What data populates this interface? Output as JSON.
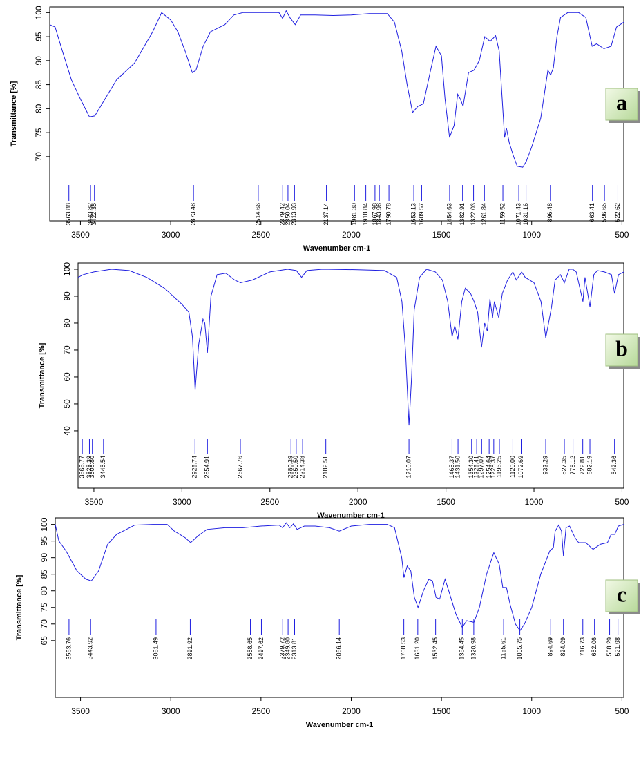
{
  "chart_data": [
    {
      "type": "line",
      "label": "a",
      "color": "#1f1fe0",
      "xlabel": "Wavenumber cm-1",
      "ylabel": "Transmittance [%]",
      "xlim": [
        3670,
        490
      ],
      "ylim": [
        56.6,
        101.2
      ],
      "xticks": [
        3500,
        3000,
        2500,
        2000,
        1500,
        1000,
        500
      ],
      "yticks": [
        70,
        75,
        80,
        85,
        90,
        95,
        100
      ],
      "x": [
        3670,
        3640,
        3600,
        3550,
        3500,
        3450,
        3420,
        3380,
        3300,
        3200,
        3100,
        3050,
        3000,
        2960,
        2920,
        2880,
        2860,
        2820,
        2780,
        2700,
        2650,
        2600,
        2400,
        2380,
        2360,
        2340,
        2310,
        2280,
        2200,
        2100,
        2000,
        1900,
        1800,
        1760,
        1720,
        1690,
        1660,
        1630,
        1600,
        1560,
        1530,
        1500,
        1480,
        1455,
        1430,
        1410,
        1395,
        1380,
        1350,
        1320,
        1290,
        1260,
        1230,
        1200,
        1180,
        1160,
        1150,
        1140,
        1125,
        1100,
        1080,
        1050,
        1030,
        1000,
        950,
        910,
        895,
        880,
        860,
        840,
        800,
        740,
        700,
        665,
        640,
        600,
        560,
        530,
        510,
        490
      ],
      "values": [
        97.5,
        97,
        92,
        86,
        82,
        78.3,
        78.5,
        81,
        86,
        89.5,
        96,
        100,
        98.5,
        96,
        92,
        87.5,
        88,
        93,
        96,
        97.5,
        99.5,
        100,
        100,
        98.8,
        100.4,
        99,
        97.5,
        99.5,
        99.5,
        99.4,
        99.5,
        99.8,
        99.8,
        98,
        92,
        85,
        79.2,
        80.5,
        81,
        88,
        93,
        91,
        82,
        74,
        76.5,
        83,
        82,
        80.5,
        87.5,
        88,
        90,
        95,
        94,
        95.2,
        92,
        80,
        74,
        76,
        73,
        70,
        68,
        67.8,
        69,
        72,
        78,
        88,
        87,
        88.5,
        95,
        99,
        100,
        100,
        99,
        93,
        93.5,
        92.5,
        93,
        97,
        97.5,
        98
      ],
      "peaks": [
        3563.88,
        3443.82,
        3422.35,
        2873.48,
        2514.66,
        2379.42,
        2350.04,
        2313.93,
        2137.14,
        {
          "value": 1981.3,
          "label": "1981.30"
        },
        1918.84,
        1867.98,
        1843.98,
        1790.78,
        1653.13,
        1609.57,
        1454.63,
        1382.91,
        1322.03,
        1261.84,
        1159.52,
        1071.43,
        1031.16,
        896.48,
        663.41,
        596.65,
        522.62
      ]
    },
    {
      "type": "line",
      "label": "b",
      "color": "#1f1fe0",
      "xlabel": "Wavenumber cm-1",
      "ylabel": "Transmittance [%]",
      "xlim": [
        3590,
        490
      ],
      "ylim": [
        18.7,
        102.3
      ],
      "xticks": [
        3500,
        3000,
        2500,
        2000,
        1500,
        1000,
        500
      ],
      "yticks": [
        40,
        50,
        60,
        70,
        80,
        90,
        100
      ],
      "x": [
        3590,
        3560,
        3500,
        3400,
        3300,
        3200,
        3100,
        3000,
        2960,
        2940,
        2925,
        2905,
        2880,
        2870,
        2855,
        2835,
        2800,
        2750,
        2700,
        2667,
        2600,
        2500,
        2400,
        2350,
        2320,
        2290,
        2200,
        2000,
        1850,
        1780,
        1750,
        1730,
        1710,
        1695,
        1680,
        1650,
        1610,
        1560,
        1520,
        1490,
        1465,
        1450,
        1432,
        1410,
        1390,
        1360,
        1340,
        1320,
        1298,
        1280,
        1265,
        1250,
        1235,
        1225,
        1200,
        1180,
        1150,
        1120,
        1100,
        1070,
        1050,
        1000,
        960,
        933,
        900,
        880,
        850,
        827,
        800,
        780,
        760,
        722,
        710,
        682,
        660,
        640,
        600,
        560,
        542,
        520,
        490
      ],
      "values": [
        97,
        98,
        99,
        100,
        99.5,
        97,
        93,
        87,
        84,
        75,
        55,
        72,
        81.5,
        80,
        69,
        90,
        98,
        98.5,
        96,
        95,
        96,
        99,
        100,
        99.5,
        97,
        99.5,
        100,
        99.8,
        99.5,
        97,
        88,
        70,
        42,
        60,
        85,
        97,
        100,
        99,
        96,
        88,
        75,
        79,
        74,
        88,
        93,
        91,
        88,
        84,
        71,
        80,
        77,
        89,
        82,
        88,
        82,
        91,
        96,
        99,
        96,
        99,
        97,
        95,
        88,
        74.5,
        86,
        96,
        98,
        95,
        100,
        100,
        99,
        88,
        97,
        86,
        98,
        99.5,
        99,
        98,
        91,
        98,
        99
      ],
      "peaks": [
        3565.77,
        3525.39,
        {
          "value": 3508.8,
          "label": "3508.80"
        },
        3445.54,
        2925.74,
        2854.91,
        2667.76,
        2380.39,
        {
          "value": 2350.5,
          "label": "2350.50"
        },
        2314.38,
        2182.51,
        1710.07,
        1465.37,
        {
          "value": 1431.5,
          "label": "1431.50"
        },
        {
          "value": 1354.3,
          "label": "1354.30"
        },
        1325.41,
        1297.07,
        1254.64,
        1228.37,
        1196.25,
        {
          "value": 1120,
          "label": "1120.00"
        },
        1072.69,
        933.29,
        827.35,
        778.12,
        722.81,
        682.19,
        542.36
      ]
    },
    {
      "type": "line",
      "label": "c",
      "color": "#1f1fe0",
      "xlabel": "Wavenumber cm-1",
      "ylabel": "Transmittance [%]",
      "xlim": [
        3640,
        490
      ],
      "ylim": [
        47.9,
        102
      ],
      "xticks": [
        3500,
        3000,
        2500,
        2000,
        1500,
        1000,
        500
      ],
      "yticks": [
        65,
        70,
        75,
        80,
        85,
        90,
        95,
        100
      ],
      "x": [
        3640,
        3620,
        3580,
        3520,
        3470,
        3440,
        3400,
        3350,
        3300,
        3200,
        3100,
        3020,
        2980,
        2920,
        2890,
        2850,
        2800,
        2700,
        2600,
        2500,
        2400,
        2380,
        2360,
        2340,
        2320,
        2300,
        2260,
        2200,
        2120,
        2066,
        2000,
        1900,
        1800,
        1760,
        1720,
        1708,
        1690,
        1670,
        1650,
        1630,
        1600,
        1570,
        1550,
        1530,
        1510,
        1480,
        1460,
        1420,
        1385,
        1360,
        1320,
        1290,
        1250,
        1210,
        1180,
        1160,
        1140,
        1120,
        1090,
        1065,
        1040,
        1000,
        950,
        900,
        880,
        870,
        850,
        835,
        824,
        810,
        790,
        760,
        740,
        700,
        660,
        620,
        580,
        560,
        540,
        520,
        490
      ],
      "values": [
        100,
        95,
        92,
        86,
        83.5,
        83,
        86,
        94,
        97,
        99.8,
        100,
        100,
        98,
        96,
        94.5,
        96.5,
        98.5,
        99,
        99,
        99.5,
        99.8,
        99,
        100.5,
        99,
        100.2,
        98.5,
        99.5,
        99.5,
        99,
        98,
        99.5,
        100,
        100,
        99,
        90,
        84,
        87.5,
        86,
        78,
        75,
        80,
        83.5,
        83,
        78,
        77.5,
        83.5,
        80,
        73,
        69,
        71,
        70.5,
        75,
        85,
        91.5,
        88,
        81,
        81,
        76,
        70,
        68,
        70,
        75,
        85,
        92,
        93,
        98,
        99.8,
        98,
        90.5,
        99,
        99.5,
        96,
        94.5,
        94.5,
        92.5,
        94,
        94.5,
        97,
        97,
        99.5,
        100
      ],
      "peaks": [
        3563.76,
        3443.92,
        3081.49,
        2891.92,
        2558.65,
        2497.62,
        2379.72,
        {
          "value": 2349.8,
          "label": "2349.80"
        },
        2313.81,
        2066.14,
        1708.53,
        {
          "value": 1631.2,
          "label": "1631.20"
        },
        1532.45,
        1384.45,
        1320.98,
        1155.61,
        1065.75,
        894.69,
        824.09,
        716.73,
        652.06,
        568.29,
        521.98
      ]
    }
  ]
}
